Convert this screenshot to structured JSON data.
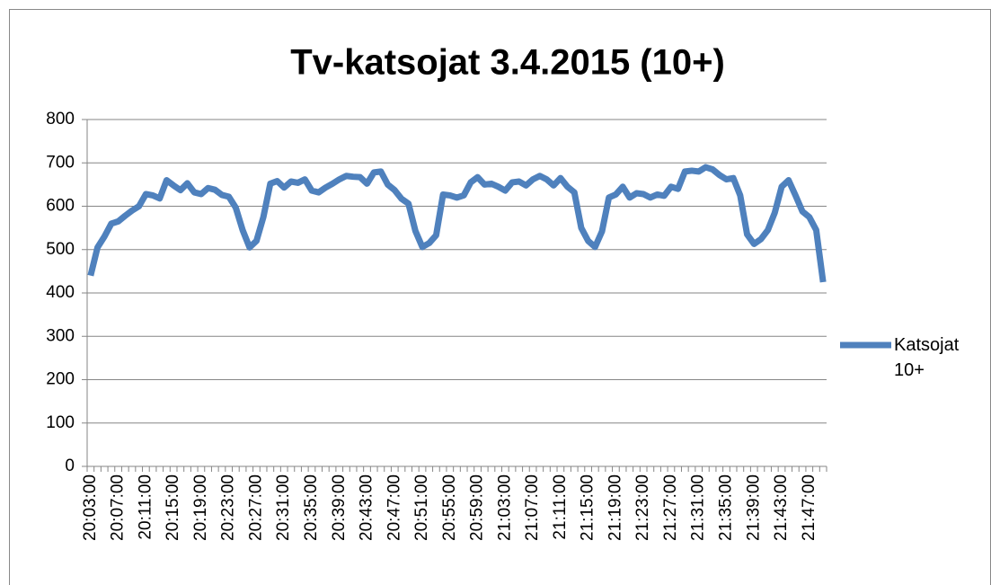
{
  "chart_data": {
    "type": "line",
    "title": "Tv-katsojat 3.4.2015 (10+)",
    "categories": [
      "20:03:00",
      null,
      null,
      null,
      "20:07:00",
      null,
      null,
      null,
      "20:11:00",
      null,
      null,
      null,
      "20:15:00",
      null,
      null,
      null,
      "20:19:00",
      null,
      null,
      null,
      "20:23:00",
      null,
      null,
      null,
      "20:27:00",
      null,
      null,
      null,
      "20:31:00",
      null,
      null,
      null,
      "20:35:00",
      null,
      null,
      null,
      "20:39:00",
      null,
      null,
      null,
      "20:43:00",
      null,
      null,
      null,
      "20:47:00",
      null,
      null,
      null,
      "20:51:00",
      null,
      null,
      null,
      "20:55:00",
      null,
      null,
      null,
      "20:59:00",
      null,
      null,
      null,
      "21:03:00",
      null,
      null,
      null,
      "21:07:00",
      null,
      null,
      null,
      "21:11:00",
      null,
      null,
      null,
      "21:15:00",
      null,
      null,
      null,
      "21:19:00",
      null,
      null,
      null,
      "21:23:00",
      null,
      null,
      null,
      "21:27:00",
      null,
      null,
      null,
      "21:31:00",
      null,
      null,
      null,
      "21:35:00",
      null,
      null,
      null,
      "21:39:00",
      null,
      null,
      null,
      "21:43:00",
      null,
      null,
      null,
      "21:47:00",
      null,
      null
    ],
    "series": [
      {
        "name": "Katsojat 10+",
        "color": "#4f81bd",
        "values": [
          440,
          505,
          530,
          560,
          565,
          578,
          590,
          600,
          628,
          625,
          618,
          660,
          648,
          637,
          653,
          632,
          628,
          642,
          638,
          626,
          622,
          597,
          545,
          505,
          520,
          575,
          652,
          658,
          643,
          657,
          654,
          662,
          636,
          632,
          643,
          652,
          662,
          670,
          668,
          667,
          652,
          678,
          680,
          650,
          637,
          617,
          606,
          543,
          506,
          515,
          533,
          627,
          625,
          620,
          625,
          655,
          667,
          650,
          652,
          645,
          636,
          655,
          657,
          648,
          662,
          670,
          662,
          648,
          665,
          645,
          632,
          550,
          520,
          506,
          542,
          620,
          627,
          645,
          620,
          630,
          628,
          620,
          627,
          624,
          645,
          640,
          680,
          682,
          680,
          690,
          685,
          672,
          662,
          665,
          625,
          535,
          513,
          524,
          545,
          585,
          645,
          660,
          625,
          588,
          575,
          545,
          425
        ]
      }
    ],
    "ylim": [
      0,
      800
    ],
    "yticks": [
      0,
      100,
      200,
      300,
      400,
      500,
      600,
      700,
      800
    ],
    "grid": true,
    "legend": "right"
  }
}
